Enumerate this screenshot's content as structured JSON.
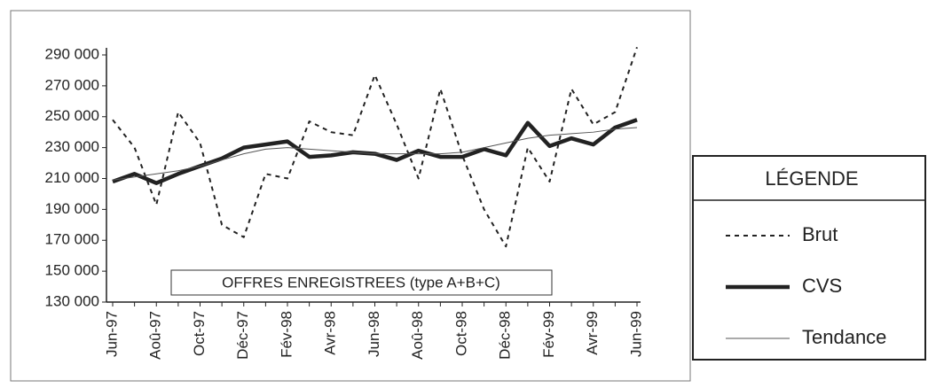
{
  "chart_data": {
    "type": "line",
    "annotation": "OFFRES ENREGISTREES (type A+B+C)",
    "legend_title": "LÉGENDE",
    "categories": [
      "Jun-97",
      null,
      "Aoû-97",
      null,
      "Oct-97",
      null,
      "Déc-97",
      null,
      "Fév-98",
      null,
      "Avr-98",
      null,
      "Jun-98",
      null,
      "Aoû-98",
      null,
      "Oct-98",
      null,
      "Déc-98",
      null,
      "Fév-99",
      null,
      "Avr-99",
      null,
      "Jun-99"
    ],
    "series": [
      {
        "name": "Brut",
        "color": "#222222",
        "style": "dashed",
        "values": [
          248000,
          230000,
          193000,
          253000,
          233000,
          180000,
          172000,
          213000,
          210000,
          247000,
          240000,
          238000,
          277000,
          245000,
          210000,
          268000,
          225000,
          190000,
          166000,
          230000,
          208000,
          268000,
          245000,
          253000,
          295000
        ]
      },
      {
        "name": "CVS",
        "color": "#222222",
        "style": "thick",
        "values": [
          208000,
          213000,
          207000,
          213000,
          218000,
          223000,
          230000,
          232000,
          234000,
          224000,
          225000,
          227000,
          226000,
          222000,
          228000,
          224000,
          224000,
          229000,
          225000,
          246000,
          231000,
          236000,
          232000,
          243000,
          248000
        ]
      },
      {
        "name": "Tendance",
        "color": "#555555",
        "style": "thin",
        "values": [
          209000,
          211000,
          213000,
          215000,
          218000,
          222000,
          226000,
          229000,
          230000,
          229000,
          228000,
          227000,
          226000,
          226000,
          226000,
          226000,
          227000,
          230000,
          233000,
          236000,
          238000,
          239000,
          240000,
          242000,
          243000
        ]
      }
    ],
    "ylim": [
      130000,
      290000
    ],
    "yticks": [
      {
        "value": 130000,
        "label": "130 000"
      },
      {
        "value": 150000,
        "label": "150 000"
      },
      {
        "value": 170000,
        "label": "170 000"
      },
      {
        "value": 190000,
        "label": "190 000"
      },
      {
        "value": 210000,
        "label": "210 000"
      },
      {
        "value": 230000,
        "label": "230 000"
      },
      {
        "value": 250000,
        "label": "250 000"
      },
      {
        "value": 270000,
        "label": "270 000"
      },
      {
        "value": 290000,
        "label": "290 000"
      }
    ],
    "grid": false
  }
}
